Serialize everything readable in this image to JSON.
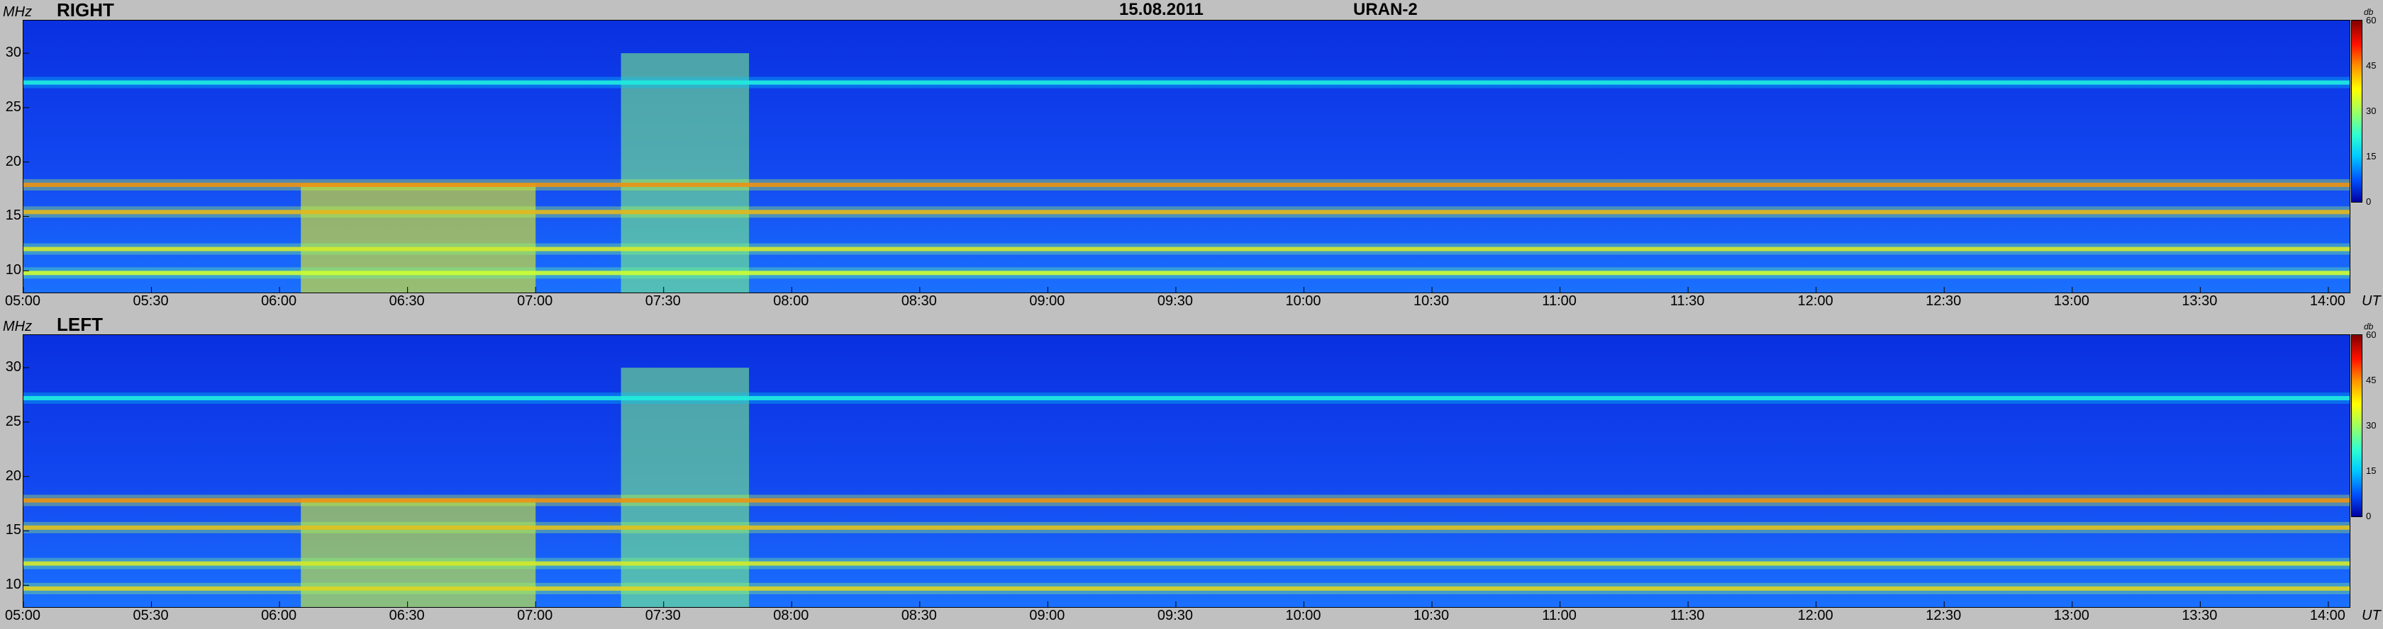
{
  "header": {
    "date": "15.08.2011",
    "instrument": "URAN-2"
  },
  "colors": {
    "background": "#c0c0c0",
    "spectrogram_base": "#1040e0"
  },
  "colorbar": {
    "unit": "db",
    "ticks": [
      "60",
      "45",
      "30",
      "15",
      "0"
    ]
  },
  "chart_data": [
    {
      "type": "heatmap",
      "title": "RIGHT",
      "ylabel": "MHz",
      "xlabel": "UT",
      "ylim": [
        8,
        33
      ],
      "xlim": [
        "05:00",
        "14:05"
      ],
      "y_ticks": [
        "30",
        "25",
        "20",
        "15",
        "10"
      ],
      "x_ticks": [
        "05:00",
        "05:30",
        "06:00",
        "06:30",
        "07:00",
        "07:30",
        "08:00",
        "08:30",
        "09:00",
        "09:30",
        "10:00",
        "10:30",
        "11:00",
        "11:30",
        "12:00",
        "12:30",
        "13:00",
        "13:30",
        "14:00"
      ],
      "colorbar": {
        "label": "db",
        "range": [
          0,
          60
        ]
      },
      "features": [
        {
          "kind": "band",
          "freq_mhz": 17.9,
          "level_db": 48
        },
        {
          "kind": "band",
          "freq_mhz": 15.4,
          "level_db": 45
        },
        {
          "kind": "band",
          "freq_mhz": 12.0,
          "level_db": 40
        },
        {
          "kind": "band",
          "freq_mhz": 9.8,
          "level_db": 38
        },
        {
          "kind": "band",
          "freq_mhz": 27.3,
          "level_db": 22
        },
        {
          "kind": "burst",
          "time_start": "06:05",
          "time_end": "07:00",
          "freq_min_mhz": 8,
          "freq_max_mhz": 18,
          "level_db": 38
        },
        {
          "kind": "burst",
          "time_start": "07:20",
          "time_end": "07:50",
          "freq_min_mhz": 8,
          "freq_max_mhz": 30,
          "level_db": 28
        }
      ]
    },
    {
      "type": "heatmap",
      "title": "LEFT",
      "ylabel": "MHz",
      "xlabel": "UT",
      "ylim": [
        8,
        33
      ],
      "xlim": [
        "05:00",
        "14:05"
      ],
      "y_ticks": [
        "30",
        "25",
        "20",
        "15",
        "10"
      ],
      "x_ticks": [
        "05:00",
        "05:30",
        "06:00",
        "06:30",
        "07:00",
        "07:30",
        "08:00",
        "08:30",
        "09:00",
        "09:30",
        "10:00",
        "10:30",
        "11:00",
        "11:30",
        "12:00",
        "12:30",
        "13:00",
        "13:30",
        "14:00"
      ],
      "colorbar": {
        "label": "db",
        "range": [
          0,
          60
        ]
      },
      "features": [
        {
          "kind": "band",
          "freq_mhz": 17.8,
          "level_db": 48
        },
        {
          "kind": "band",
          "freq_mhz": 15.3,
          "level_db": 44
        },
        {
          "kind": "band",
          "freq_mhz": 12.0,
          "level_db": 40
        },
        {
          "kind": "band",
          "freq_mhz": 9.7,
          "level_db": 42
        },
        {
          "kind": "band",
          "freq_mhz": 27.2,
          "level_db": 22
        },
        {
          "kind": "burst",
          "time_start": "06:05",
          "time_end": "07:00",
          "freq_min_mhz": 8,
          "freq_max_mhz": 18,
          "level_db": 36
        },
        {
          "kind": "burst",
          "time_start": "07:20",
          "time_end": "07:50",
          "freq_min_mhz": 8,
          "freq_max_mhz": 30,
          "level_db": 28
        }
      ]
    }
  ]
}
